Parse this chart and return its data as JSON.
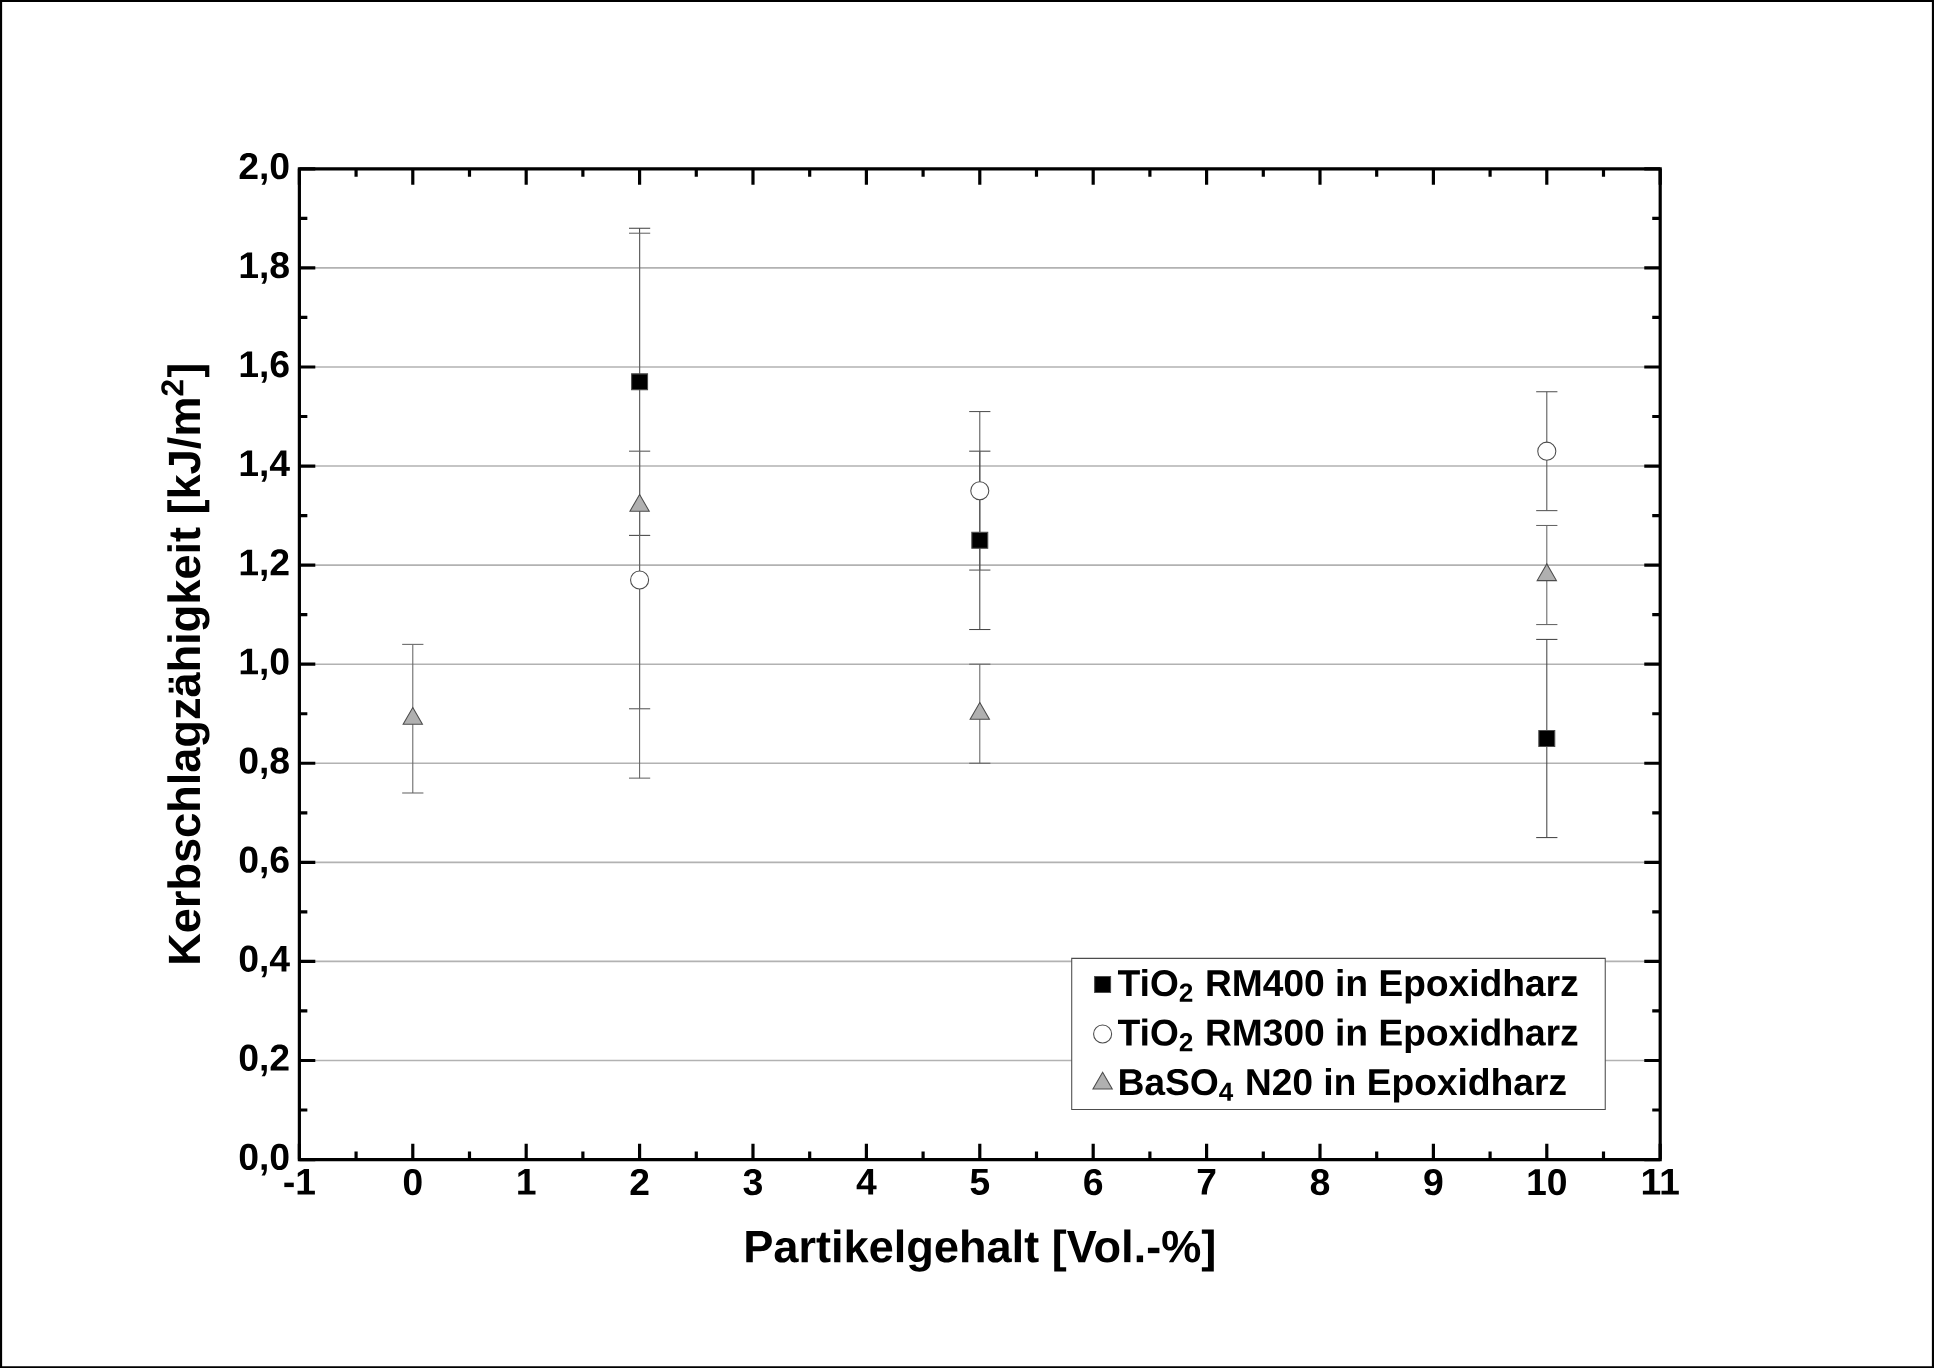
{
  "chart_data": {
    "type": "scatter",
    "xlabel": "Partikelgehalt [Vol.-%]",
    "ylabel": "Kerbschlagzähigkeit [kJ/m$^{2}$]",
    "x": [
      0,
      2,
      5,
      10
    ],
    "series": [
      {
        "name": "TiO$_{2}$ RM400 in Epoxidharz",
        "color": "#000000",
        "marker": "square",
        "values": [
          null,
          1.57,
          1.25,
          0.85
        ],
        "errors": [
          null,
          0.31,
          0.18,
          0.2
        ]
      },
      {
        "name": "TiO$_{2}$ RM300 in Epoxidharz",
        "color": "#ffffff",
        "marker": "circle",
        "values": [
          null,
          1.17,
          1.35,
          1.43
        ],
        "errors": [
          null,
          0.26,
          0.16,
          0.12
        ]
      },
      {
        "name": "BaSO$_{4}$ N20 in Epoxidharz",
        "color": "#b0b0b0",
        "marker": "triangle",
        "values": [
          0.89,
          1.32,
          0.9,
          1.18
        ],
        "errors": [
          0.15,
          0.55,
          0.1,
          0.1
        ]
      }
    ],
    "xlim": [
      -1,
      11
    ],
    "xticks": [
      -1,
      0,
      1,
      2,
      3,
      4,
      5,
      6,
      7,
      8,
      9,
      10,
      11
    ],
    "ylim": [
      0,
      2
    ],
    "yticks": [
      {
        "value": 0,
        "label": "0,0"
      },
      {
        "value": 0.2,
        "label": "0,2"
      },
      {
        "value": 0.4,
        "label": "0,4"
      },
      {
        "value": 0.6,
        "label": "0,6"
      },
      {
        "value": 0.8,
        "label": "0,8"
      },
      {
        "value": 1.0,
        "label": "1,0"
      },
      {
        "value": 1.2,
        "label": "1,2"
      },
      {
        "value": 1.4,
        "label": "1,4"
      },
      {
        "value": 1.6,
        "label": "1,6"
      },
      {
        "value": 1.8,
        "label": "1,8"
      },
      {
        "value": 2.0,
        "label": "2,0"
      }
    ],
    "grid": "y",
    "legend": "bottom right"
  }
}
